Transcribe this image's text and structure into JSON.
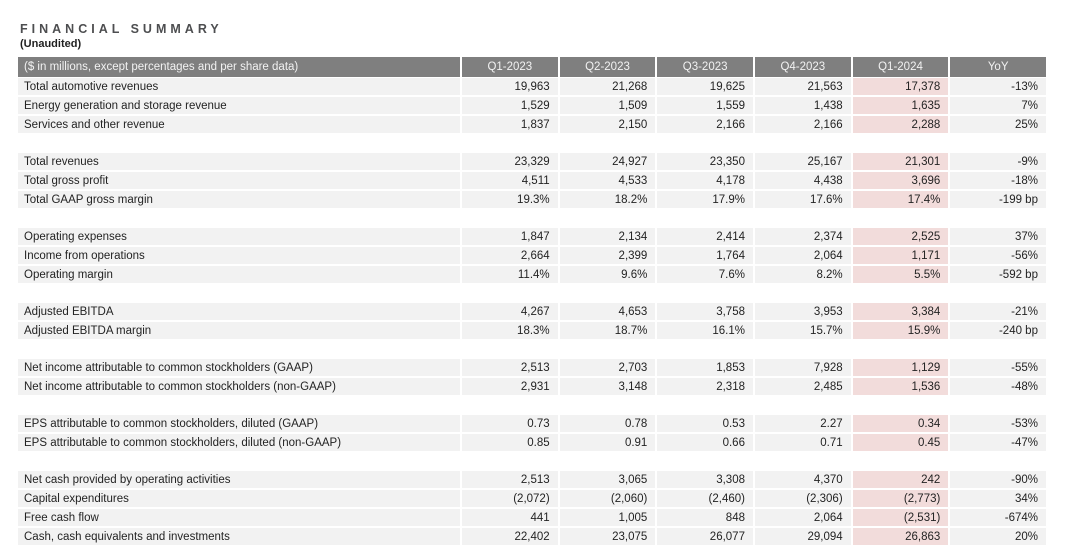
{
  "title": "FINANCIAL SUMMARY",
  "subtitle": "(Unaudited)",
  "colors": {
    "header_bg": "#7f7f7f",
    "header_text": "#f2f2f2",
    "row_bg": "#f2f2f2",
    "highlight_bg": "#f2dcdb",
    "text": "#232323"
  },
  "table": {
    "header": [
      "($ in millions, except percentages and per share data)",
      "Q1-2023",
      "Q2-2023",
      "Q3-2023",
      "Q4-2023",
      "Q1-2024",
      "YoY"
    ],
    "highlight_column": "Q1-2024",
    "groups": [
      {
        "rows": [
          {
            "label": "Total automotive revenues",
            "values": [
              "19,963",
              "21,268",
              "19,625",
              "21,563",
              "17,378",
              "-13%"
            ]
          },
          {
            "label": "Energy generation and storage revenue",
            "values": [
              "1,529",
              "1,509",
              "1,559",
              "1,438",
              "1,635",
              "7%"
            ]
          },
          {
            "label": "Services and other revenue",
            "values": [
              "1,837",
              "2,150",
              "2,166",
              "2,166",
              "2,288",
              "25%"
            ]
          }
        ]
      },
      {
        "rows": [
          {
            "label": "Total revenues",
            "values": [
              "23,329",
              "24,927",
              "23,350",
              "25,167",
              "21,301",
              "-9%"
            ]
          },
          {
            "label": "Total gross profit",
            "values": [
              "4,511",
              "4,533",
              "4,178",
              "4,438",
              "3,696",
              "-18%"
            ]
          },
          {
            "label": "Total GAAP gross margin",
            "values": [
              "19.3%",
              "18.2%",
              "17.9%",
              "17.6%",
              "17.4%",
              "-199 bp"
            ]
          }
        ]
      },
      {
        "rows": [
          {
            "label": "Operating expenses",
            "values": [
              "1,847",
              "2,134",
              "2,414",
              "2,374",
              "2,525",
              "37%"
            ]
          },
          {
            "label": "Income from operations",
            "values": [
              "2,664",
              "2,399",
              "1,764",
              "2,064",
              "1,171",
              "-56%"
            ]
          },
          {
            "label": "Operating margin",
            "values": [
              "11.4%",
              "9.6%",
              "7.6%",
              "8.2%",
              "5.5%",
              "-592 bp"
            ]
          }
        ]
      },
      {
        "rows": [
          {
            "label": "Adjusted EBITDA",
            "values": [
              "4,267",
              "4,653",
              "3,758",
              "3,953",
              "3,384",
              "-21%"
            ]
          },
          {
            "label": "Adjusted EBITDA margin",
            "values": [
              "18.3%",
              "18.7%",
              "16.1%",
              "15.7%",
              "15.9%",
              "-240 bp"
            ]
          }
        ]
      },
      {
        "rows": [
          {
            "label": "Net income attributable to common stockholders (GAAP)",
            "values": [
              "2,513",
              "2,703",
              "1,853",
              "7,928",
              "1,129",
              "-55%"
            ]
          },
          {
            "label": "Net income attributable to common stockholders (non-GAAP)",
            "values": [
              "2,931",
              "3,148",
              "2,318",
              "2,485",
              "1,536",
              "-48%"
            ]
          }
        ]
      },
      {
        "rows": [
          {
            "label": "EPS attributable to common stockholders, diluted (GAAP)",
            "values": [
              "0.73",
              "0.78",
              "0.53",
              "2.27",
              "0.34",
              "-53%"
            ]
          },
          {
            "label": "EPS attributable to common stockholders, diluted (non-GAAP)",
            "values": [
              "0.85",
              "0.91",
              "0.66",
              "0.71",
              "0.45",
              "-47%"
            ]
          }
        ]
      },
      {
        "rows": [
          {
            "label": "Net cash provided by operating activities",
            "values": [
              "2,513",
              "3,065",
              "3,308",
              "4,370",
              "242",
              "-90%"
            ]
          },
          {
            "label": "Capital expenditures",
            "values": [
              "(2,072)",
              "(2,060)",
              "(2,460)",
              "(2,306)",
              "(2,773)",
              "34%"
            ]
          },
          {
            "label": "Free cash flow",
            "values": [
              "441",
              "1,005",
              "848",
              "2,064",
              "(2,531)",
              "-674%"
            ]
          },
          {
            "label": "Cash, cash equivalents and investments",
            "values": [
              "22,402",
              "23,075",
              "26,077",
              "29,094",
              "26,863",
              "20%"
            ]
          }
        ]
      }
    ]
  }
}
